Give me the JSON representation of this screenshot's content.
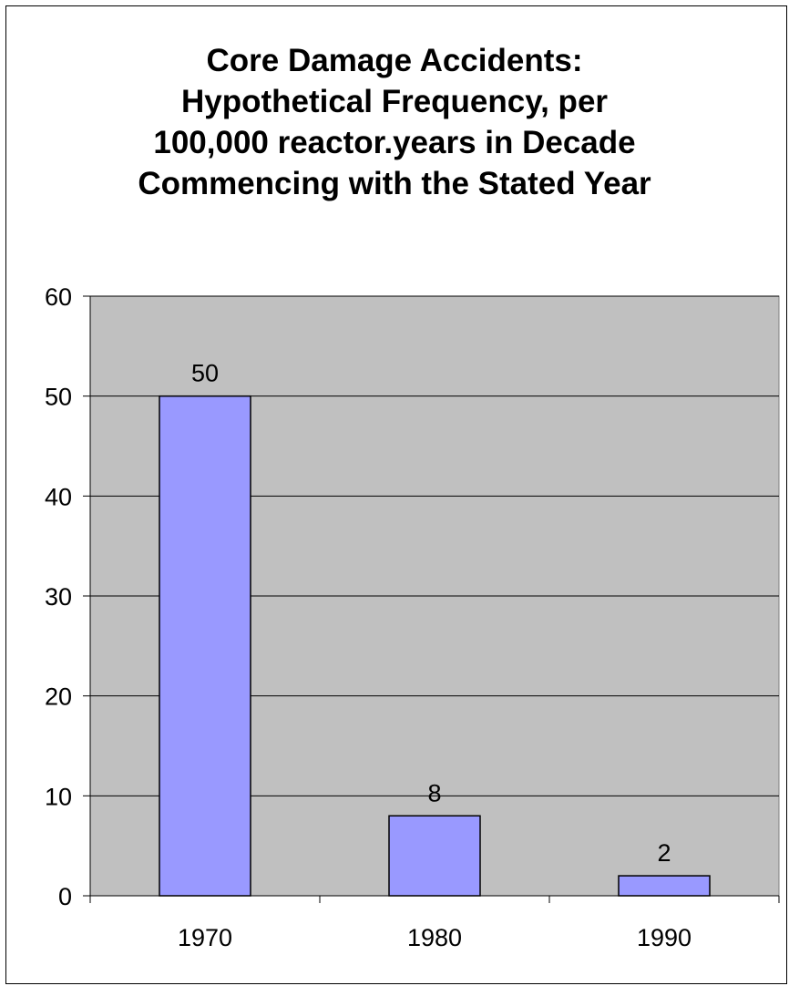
{
  "chart_data": {
    "type": "bar",
    "title_lines": [
      "Core Damage Accidents:",
      "Hypothetical Frequency, per",
      "100,000 reactor.years in Decade",
      "Commencing with the Stated Year"
    ],
    "categories": [
      "1970",
      "1980",
      "1990"
    ],
    "values": [
      50,
      8,
      2
    ],
    "data_labels": [
      "50",
      "8",
      "2"
    ],
    "y_ticks": [
      "0",
      "10",
      "20",
      "30",
      "40",
      "50",
      "60"
    ],
    "ylim": [
      0,
      60
    ],
    "xlabel": "",
    "ylabel": "",
    "grid": true,
    "legend": "none",
    "colors": {
      "bar": "#9999ff",
      "plot_background": "#c0c0c0",
      "gridline": "#000000"
    }
  }
}
